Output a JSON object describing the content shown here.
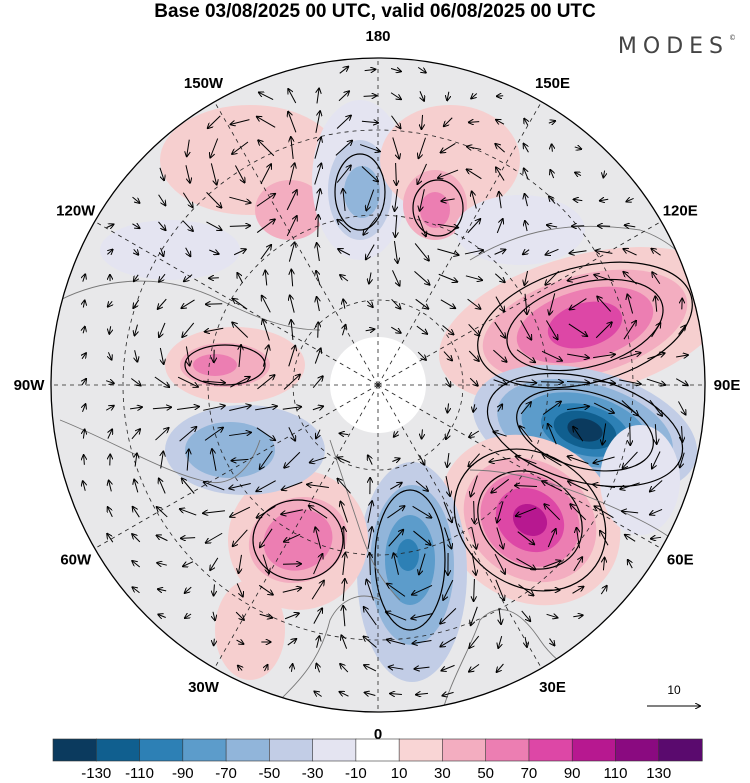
{
  "title": "Base 03/08/2025 00 UTC, valid 06/08/2025 00 UTC",
  "brand": "MODES",
  "brand_mark": "©",
  "map": {
    "projection": "north-polar-stereographic",
    "longitude_labels": [
      {
        "text": "180",
        "lon": 180
      },
      {
        "text": "150E",
        "lon": 150
      },
      {
        "text": "120E",
        "lon": 120
      },
      {
        "text": "90E",
        "lon": 90
      },
      {
        "text": "60E",
        "lon": 60
      },
      {
        "text": "30E",
        "lon": 30
      },
      {
        "text": "0",
        "lon": 0
      },
      {
        "text": "30W",
        "lon": -30
      },
      {
        "text": "60W",
        "lon": -60
      },
      {
        "text": "90W",
        "lon": -90
      },
      {
        "text": "120W",
        "lon": -120
      },
      {
        "text": "150W",
        "lon": -150
      }
    ],
    "anomaly_centers": [
      {
        "name": "east-siberia-high",
        "sign": "positive",
        "peak": 100
      },
      {
        "name": "ural-low",
        "sign": "negative",
        "peak": -130
      },
      {
        "name": "scandinavia-high",
        "sign": "positive",
        "peak": 110
      },
      {
        "name": "north-atlantic-low",
        "sign": "negative",
        "peak": -90
      },
      {
        "name": "greenland-west-high",
        "sign": "positive",
        "peak": 80
      },
      {
        "name": "canada-high",
        "sign": "positive",
        "peak": 60
      },
      {
        "name": "hudson-low",
        "sign": "negative",
        "peak": -50
      },
      {
        "name": "alaska-high",
        "sign": "positive",
        "peak": 40
      },
      {
        "name": "bering-low",
        "sign": "negative",
        "peak": -60
      },
      {
        "name": "kamchatka-high",
        "sign": "positive",
        "peak": 60
      }
    ],
    "reference_vector_label": "10"
  },
  "colorbar": {
    "tick_labels": [
      "-130",
      "-110",
      "-90",
      "-70",
      "-50",
      "-30",
      "-10",
      "10",
      "30",
      "50",
      "70",
      "90",
      "110",
      "130"
    ],
    "colors": [
      "#0b3a5e",
      "#105f8f",
      "#2d80b5",
      "#5c9ccb",
      "#91b5da",
      "#c2cde6",
      "#e4e4f1",
      "#ffffff",
      "#f9d5d5",
      "#f3adc0",
      "#ec7eb2",
      "#dd47a6",
      "#b71890",
      "#8a0a80",
      "#5a0a6e"
    ]
  }
}
